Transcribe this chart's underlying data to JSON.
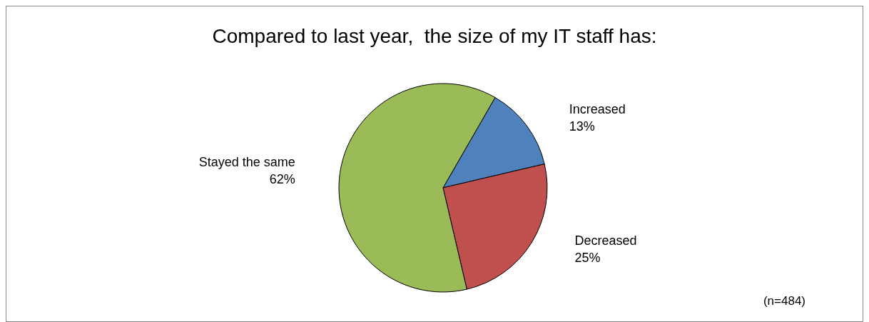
{
  "chart_data": {
    "type": "pie",
    "title": "Compared to last year,  the size of my IT staff has:",
    "categories": [
      "Increased",
      "Decreased",
      "Stayed the same"
    ],
    "values": [
      13,
      25,
      62
    ],
    "colors": [
      "#4f81bd",
      "#c0504d",
      "#9bbb59"
    ],
    "value_labels": [
      "13%",
      "25%",
      "62%"
    ],
    "legend": false,
    "annotations": [
      "(n=484)"
    ]
  }
}
